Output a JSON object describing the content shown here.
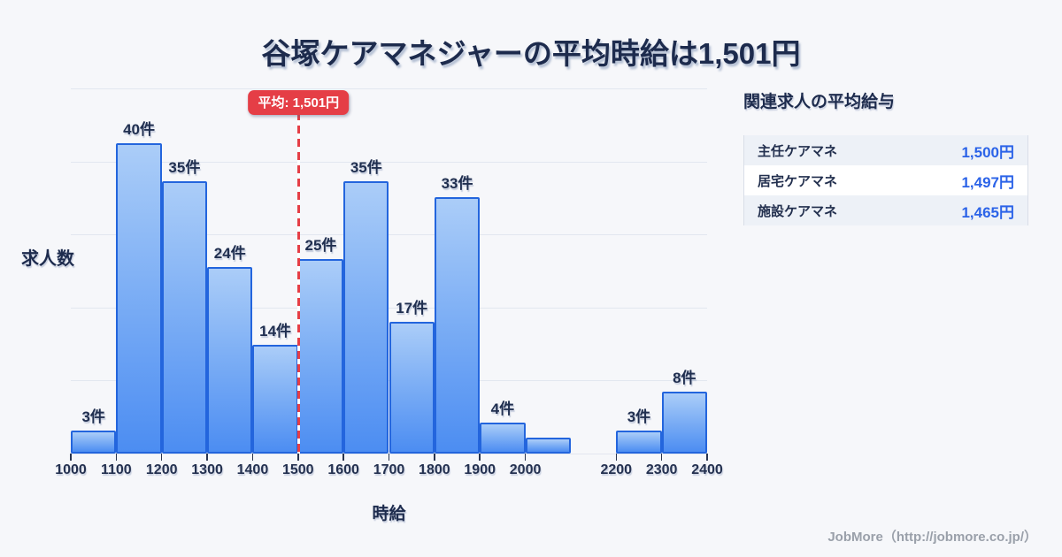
{
  "title": "谷塚ケアマネジャーの平均時給は1,501円",
  "chart_data": {
    "type": "bar",
    "title": "谷塚ケアマネジャーの平均時給は1,501円",
    "xlabel": "時給",
    "ylabel": "求人数",
    "x_range": [
      1000,
      2400
    ],
    "ylim": [
      0,
      47
    ],
    "grid": true,
    "bins": [
      {
        "from": 1000,
        "to": 1100,
        "count": 3,
        "label": "3件"
      },
      {
        "from": 1100,
        "to": 1200,
        "count": 40,
        "label": "40件"
      },
      {
        "from": 1200,
        "to": 1300,
        "count": 35,
        "label": "35件"
      },
      {
        "from": 1300,
        "to": 1400,
        "count": 24,
        "label": "24件"
      },
      {
        "from": 1400,
        "to": 1500,
        "count": 14,
        "label": "14件"
      },
      {
        "from": 1500,
        "to": 1600,
        "count": 25,
        "label": "25件"
      },
      {
        "from": 1600,
        "to": 1700,
        "count": 35,
        "label": "35件"
      },
      {
        "from": 1700,
        "to": 1800,
        "count": 17,
        "label": "17件"
      },
      {
        "from": 1800,
        "to": 1900,
        "count": 33,
        "label": "33件"
      },
      {
        "from": 1900,
        "to": 2000,
        "count": 4,
        "label": "4件"
      },
      {
        "from": 2000,
        "to": 2100,
        "count": 2,
        "label": ""
      },
      {
        "from": 2200,
        "to": 2300,
        "count": 3,
        "label": "3件"
      },
      {
        "from": 2300,
        "to": 2400,
        "count": 8,
        "label": "8件"
      }
    ],
    "x_ticks": [
      1000,
      1100,
      1200,
      1300,
      1400,
      1500,
      1600,
      1700,
      1800,
      1900,
      2000,
      2200,
      2300,
      2400
    ],
    "average_line": {
      "value": 1501,
      "label": "平均: 1,501円"
    }
  },
  "related_panel": {
    "title": "関連求人の平均給与",
    "rows": [
      {
        "label": "主任ケアマネ",
        "value": "1,500円"
      },
      {
        "label": "居宅ケアマネ",
        "value": "1,497円"
      },
      {
        "label": "施設ケアマネ",
        "value": "1,465円"
      }
    ]
  },
  "footer": {
    "credit": "JobMore（http://jobmore.co.jp/）"
  },
  "colors": {
    "background": "#f6f7fa",
    "title_text": "#1d2b4d",
    "bar_border": "#2365dd",
    "bar_fill_top": "#abcdf8",
    "bar_fill_bottom": "#4c8df2",
    "grid_line": "#e2e7f0",
    "average_red": "#e53e46",
    "value_blue": "#2b63e8",
    "footer_gray": "#9aa0aa"
  }
}
